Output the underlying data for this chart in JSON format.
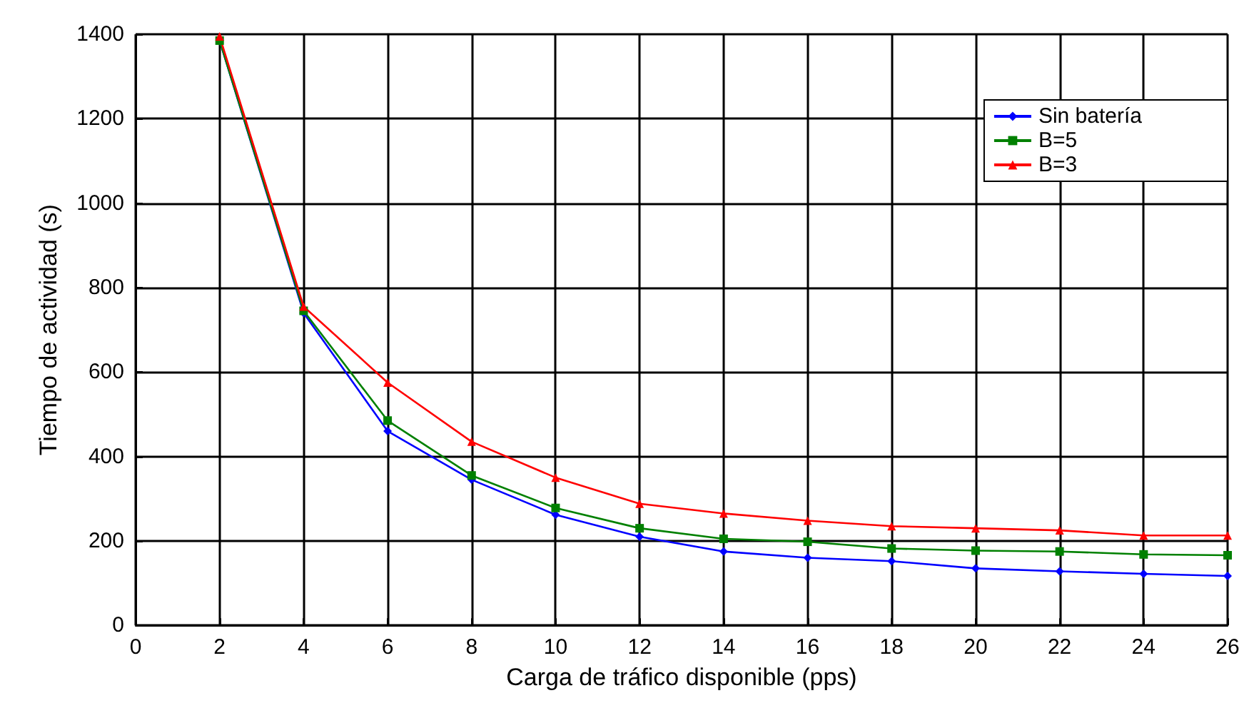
{
  "chart_data": {
    "type": "line",
    "xlabel": "Carga de tráfico disponible (pps)",
    "ylabel": "Tiempo de actividad (s)",
    "x": [
      2,
      4,
      6,
      8,
      10,
      12,
      14,
      16,
      18,
      20,
      22,
      24,
      26
    ],
    "xlim": [
      0,
      26
    ],
    "xticks": [
      0,
      2,
      4,
      6,
      8,
      10,
      12,
      14,
      16,
      18,
      20,
      22,
      24,
      26
    ],
    "ylim": [
      0,
      1400
    ],
    "yticks": [
      0,
      200,
      400,
      600,
      800,
      1000,
      1200,
      1400
    ],
    "grid": true,
    "legend": "top right",
    "line_style": "solid",
    "series": [
      {
        "name": "Sin batería",
        "color": "#0000ff",
        "marker": "diamond",
        "values": [
          1385,
          740,
          460,
          345,
          262,
          210,
          175,
          160,
          152,
          135,
          128,
          122,
          117
        ]
      },
      {
        "name": "B=5",
        "color": "#008000",
        "marker": "square",
        "values": [
          1385,
          745,
          485,
          355,
          278,
          230,
          205,
          198,
          182,
          177,
          175,
          168,
          166
        ]
      },
      {
        "name": "B=3",
        "color": "#ff0000",
        "marker": "triangle",
        "values": [
          1395,
          755,
          575,
          435,
          350,
          288,
          265,
          248,
          235,
          230,
          225,
          213,
          213
        ]
      }
    ]
  }
}
